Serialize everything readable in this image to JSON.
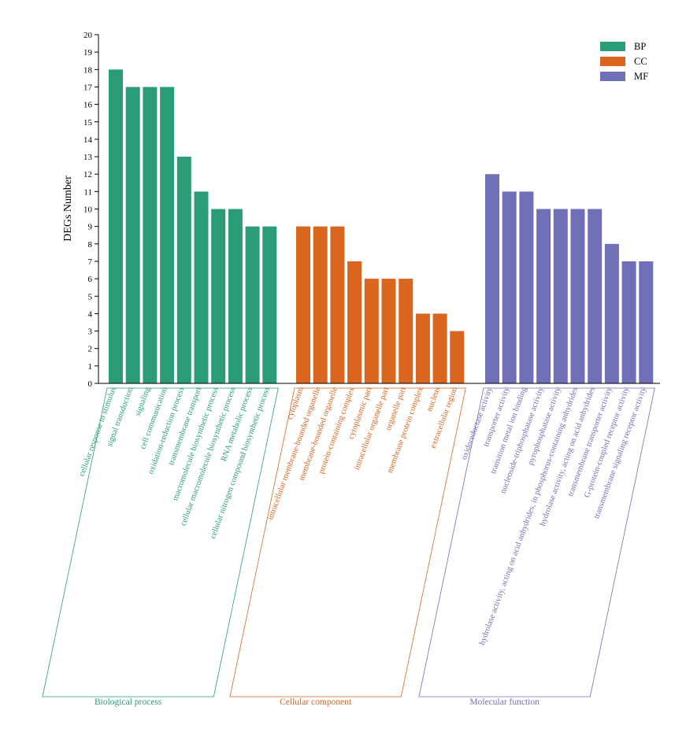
{
  "chart_data": {
    "type": "bar",
    "ylabel": "DEGs Number",
    "ylim": [
      0,
      20
    ],
    "yticks": [
      0,
      1,
      2,
      3,
      4,
      5,
      6,
      7,
      8,
      9,
      10,
      11,
      12,
      13,
      14,
      15,
      16,
      17,
      18,
      19,
      20
    ],
    "legend_position": "top-right",
    "groups": [
      {
        "key": "BP",
        "name": "Biological process",
        "color": "#2a9d78",
        "categories": [
          "cellular response to stimulus",
          "signal transduction",
          "signaling",
          "cell communication",
          "oxidation-reduction process",
          "transmembrane transport",
          "macromolecule biosynthetic process",
          "cellular macromolecule biosynthetic process",
          "RNA metabolic process",
          "cellular nitrogen compound biosynthetic process"
        ],
        "values": [
          18,
          17,
          17,
          17,
          13,
          11,
          10,
          10,
          9,
          9
        ]
      },
      {
        "key": "CC",
        "name": "Cellular component",
        "color": "#d9651f",
        "categories": [
          "cytoplasm",
          "intracellular membrane-bounded organelle",
          "membrane-bounded organelle",
          "protein-containing complex",
          "cytoplasmic part",
          "intracellular organelle part",
          "organelle part",
          "membrane protein complex",
          "nucleus",
          "extracellular region"
        ],
        "values": [
          9,
          9,
          9,
          7,
          6,
          6,
          6,
          4,
          4,
          3
        ]
      },
      {
        "key": "MF",
        "name": "Molecular function",
        "color": "#7070b8",
        "categories": [
          "oxidoreductase activity",
          "transporter activity",
          "transition metal ion binding",
          "nucleoside-triphosphatase activity",
          "pyrophosphatase activity",
          "hydrolase activity, acting on acid anhydrides, in phosphorus-containing anhydrides",
          "hydrolase activity, acting on acid anhydrides",
          "transmembrane transporter activity",
          "G-protein-coupled receptor activity",
          "transmembrane signaling receptor activity"
        ],
        "values": [
          12,
          11,
          11,
          10,
          10,
          10,
          10,
          8,
          7,
          7
        ]
      }
    ]
  }
}
